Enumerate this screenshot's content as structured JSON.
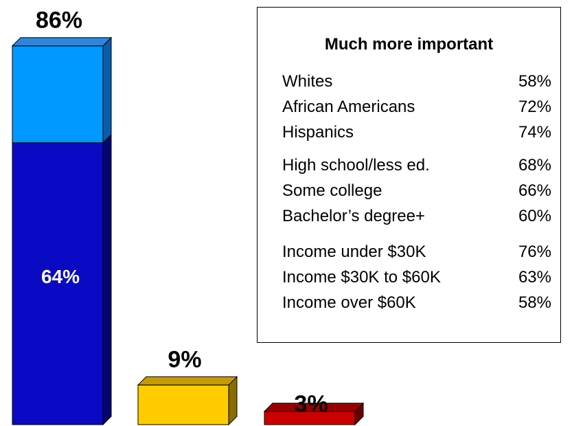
{
  "chart_data": {
    "type": "bar",
    "stacked_3d": true,
    "categories": [
      "",
      "",
      ""
    ],
    "bars": [
      {
        "total": 86,
        "total_label": "86%",
        "segments": [
          {
            "name": "Much more important",
            "value": 64,
            "label": "64%",
            "color": "#0a0ac4",
            "side": "#06066f",
            "top": "#3535e0"
          },
          {
            "name": "",
            "value": 22,
            "label": "",
            "color": "#0099ff",
            "side": "#0a5da6",
            "top": "#2f86d8"
          }
        ]
      },
      {
        "total": 9,
        "total_label": "9%",
        "segments": [
          {
            "name": "",
            "value": 9,
            "label": "",
            "color": "#ffcc00",
            "side": "#8a6d00",
            "top": "#c79b00"
          }
        ]
      },
      {
        "total": 3,
        "total_label": "3%",
        "segments": [
          {
            "name": "",
            "value": 3,
            "label": "",
            "color": "#cc0000",
            "side": "#6a0000",
            "top": "#9a0000"
          }
        ]
      }
    ],
    "ylim": [
      0,
      100
    ],
    "grid": false,
    "legend": "none",
    "xlabel": "",
    "ylabel": ""
  },
  "panel": {
    "title": "Much more important",
    "rows": [
      {
        "label": "Whites",
        "value": "58%"
      },
      {
        "label": "African Americans",
        "value": "72%"
      },
      {
        "label": "Hispanics",
        "value": "74%"
      },
      {
        "label": "High school/less ed.",
        "value": "68%"
      },
      {
        "label": "Some college",
        "value": "66%"
      },
      {
        "label": "Bachelor’s degree+",
        "value": "60%"
      },
      {
        "label": "Income under $30K",
        "value": "76%"
      },
      {
        "label": "Income $30K to $60K",
        "value": "63%"
      },
      {
        "label": "Income over $60K",
        "value": "58%"
      }
    ]
  }
}
